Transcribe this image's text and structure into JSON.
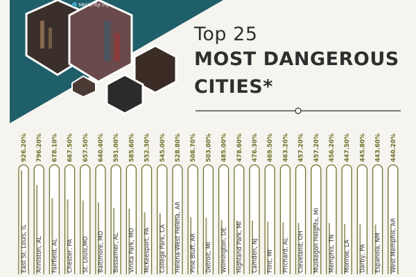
{
  "header": {
    "title_line1": "Top 25",
    "title_line2": "MOST DANGEROUS",
    "title_line3": "CITIES*",
    "logo_text": "security",
    "logo_tld": ".org"
  },
  "colors": {
    "teal": "#1f5f6a",
    "olive": "#70702a",
    "bar_fill": "#a19d6f",
    "background": "#f6f4ef",
    "text": "#2f2f2f"
  },
  "chart_data": {
    "type": "bar",
    "title": "Top 25 MOST DANGEROUS CITIES*",
    "categories": [
      "East St. Louis, IL",
      "Anniston, AL",
      "Fairfield, AL",
      "Chester, PA",
      "St. Louis,MO",
      "Baltimore, MD",
      "Bessemer, AL",
      "Vinita Park, MO",
      "McKeesport, PA",
      "College Park, CA",
      "Helena-West Helena, AR",
      "Pine Bluff, AR",
      "Detroit, MI",
      "Wilmington, DE",
      "Highland Park, MI",
      "Camden, NJ",
      "Flint, MI",
      "Prichard, AL",
      "Cleveland, OH",
      "Muskegon Heights, MI",
      "Memphis, TN",
      "Monroe, LA",
      "Darby, PA",
      "Espanola, NM",
      "West Memphis, AR"
    ],
    "value_labels": [
      "926.20%",
      "796.20%",
      "678.10%",
      "667.50%",
      "657.50%",
      "640.40%",
      "591.00%",
      "585.60%",
      "552.30%",
      "545.00%",
      "528.80%",
      "508.70%",
      "503.00%",
      "485.00%",
      "478.60%",
      "476.30%",
      "469.50%",
      "463.20%",
      "457.20%",
      "457.20%",
      "456.20%",
      "447.50%",
      "445.80%",
      "443.60%",
      "440.20%"
    ],
    "values": [
      926.2,
      796.2,
      678.1,
      667.5,
      657.5,
      640.4,
      591.0,
      585.6,
      552.3,
      545.0,
      528.8,
      508.7,
      503.0,
      485.0,
      478.6,
      476.3,
      469.5,
      463.2,
      457.2,
      457.2,
      456.2,
      447.5,
      445.8,
      443.6,
      440.2
    ],
    "ylim": [
      0,
      1000
    ],
    "xlabel": "",
    "ylabel": ""
  }
}
